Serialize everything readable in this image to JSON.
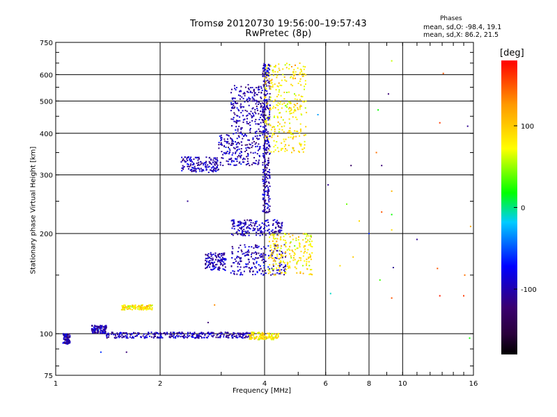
{
  "title": {
    "line1": "Tromsø 20120730 19:56:00–19:57:43",
    "line2": "RwPretec (8p)"
  },
  "stats": {
    "heading": "Phases",
    "o_mode": "mean, sd,O: -98.4, 19.1",
    "x_mode": "mean, sd,X: 86.2, 21.5"
  },
  "chart_data": {
    "type": "scatter",
    "xlabel": "Frequency [MHz]",
    "ylabel": "Stationary phase Virtual Height [km]",
    "x_scale": "log",
    "y_scale": "log",
    "xlim": [
      1,
      16
    ],
    "ylim": [
      75,
      750
    ],
    "x_ticks": [
      1,
      2,
      4,
      6,
      8,
      10,
      16
    ],
    "y_ticks": [
      75,
      100,
      200,
      300,
      400,
      500,
      600,
      750
    ],
    "x_gridlines": [
      2,
      4,
      6,
      8,
      10
    ],
    "y_gridlines": [
      100,
      200,
      300,
      400,
      500,
      600
    ],
    "colorbar": {
      "label": "[deg]",
      "range": [
        -180,
        180
      ],
      "ticks": [
        100,
        0,
        -100
      ],
      "colormap": [
        "#000000",
        "#3a0070",
        "#0000ff",
        "#00ffff",
        "#00ff00",
        "#ffff00",
        "#ff9900",
        "#ff0000"
      ]
    },
    "series": [
      {
        "name": "O",
        "mean_deg": -98.4,
        "sd_deg": 19.1,
        "color": "#2a10e8",
        "clusters": [
          {
            "f": [
              1.05,
              1.1
            ],
            "h": [
              93,
              100
            ]
          },
          {
            "f": [
              1.27,
              1.4
            ],
            "h": [
              100,
              106
            ]
          },
          {
            "f": [
              1.4,
              3.7
            ],
            "h": [
              97,
              101
            ]
          },
          {
            "f": [
              2.3,
              2.95
            ],
            "h": [
              305,
              340
            ]
          },
          {
            "f": [
              2.95,
              3.9
            ],
            "h": [
              320,
              400
            ]
          },
          {
            "f": [
              3.2,
              3.95
            ],
            "h": [
              400,
              560
            ]
          },
          {
            "f": [
              3.95,
              4.15
            ],
            "h": [
              230,
              650
            ]
          },
          {
            "f": [
              3.2,
              4.5
            ],
            "h": [
              197,
              220
            ]
          },
          {
            "f": [
              3.2,
              4.6
            ],
            "h": [
              150,
              185
            ]
          },
          {
            "f": [
              2.7,
              3.1
            ],
            "h": [
              155,
              175
            ]
          }
        ]
      },
      {
        "name": "X",
        "mean_deg": 86.2,
        "sd_deg": 21.5,
        "color": "#e8e800",
        "clusters": [
          {
            "f": [
              3.6,
              4.4
            ],
            "h": [
              96,
              101
            ]
          },
          {
            "f": [
              4.0,
              5.3
            ],
            "h": [
              350,
              650
            ]
          },
          {
            "f": [
              4.1,
              5.5
            ],
            "h": [
              150,
              200
            ]
          },
          {
            "f": [
              1.55,
              1.9
            ],
            "h": [
              118,
              122
            ]
          }
        ]
      }
    ],
    "isolated_points": [
      {
        "f": 13.1,
        "h": 605,
        "phase": 150
      },
      {
        "f": 9.3,
        "h": 660,
        "phase": 60
      },
      {
        "f": 9.1,
        "h": 525,
        "phase": -120
      },
      {
        "f": 8.5,
        "h": 470,
        "phase": 20
      },
      {
        "f": 5.7,
        "h": 455,
        "phase": -30
      },
      {
        "f": 12.8,
        "h": 430,
        "phase": 160
      },
      {
        "f": 15.4,
        "h": 420,
        "phase": -110
      },
      {
        "f": 8.4,
        "h": 350,
        "phase": 140
      },
      {
        "f": 8.7,
        "h": 320,
        "phase": -120
      },
      {
        "f": 7.1,
        "h": 320,
        "phase": -130
      },
      {
        "f": 6.1,
        "h": 280,
        "phase": -110
      },
      {
        "f": 9.3,
        "h": 268,
        "phase": 110
      },
      {
        "f": 6.9,
        "h": 245,
        "phase": 40
      },
      {
        "f": 8.7,
        "h": 232,
        "phase": 150
      },
      {
        "f": 9.3,
        "h": 228,
        "phase": 20
      },
      {
        "f": 7.5,
        "h": 218,
        "phase": 90
      },
      {
        "f": 15.7,
        "h": 210,
        "phase": 120
      },
      {
        "f": 9.3,
        "h": 205,
        "phase": 90
      },
      {
        "f": 8.0,
        "h": 200,
        "phase": -60
      },
      {
        "f": 11.0,
        "h": 192,
        "phase": -110
      },
      {
        "f": 7.2,
        "h": 170,
        "phase": 100
      },
      {
        "f": 6.6,
        "h": 160,
        "phase": 90
      },
      {
        "f": 12.6,
        "h": 157,
        "phase": 150
      },
      {
        "f": 9.4,
        "h": 158,
        "phase": -110
      },
      {
        "f": 15.1,
        "h": 150,
        "phase": 140
      },
      {
        "f": 8.6,
        "h": 145,
        "phase": 30
      },
      {
        "f": 12.8,
        "h": 130,
        "phase": 170
      },
      {
        "f": 9.3,
        "h": 128,
        "phase": 150
      },
      {
        "f": 6.2,
        "h": 132,
        "phase": -10
      },
      {
        "f": 15.0,
        "h": 130,
        "phase": 160
      },
      {
        "f": 2.4,
        "h": 250,
        "phase": -110
      },
      {
        "f": 2.87,
        "h": 122,
        "phase": 130
      },
      {
        "f": 2.75,
        "h": 108,
        "phase": -120
      },
      {
        "f": 1.35,
        "h": 88,
        "phase": -60
      },
      {
        "f": 1.6,
        "h": 88,
        "phase": -120
      },
      {
        "f": 15.6,
        "h": 97,
        "phase": 20
      }
    ]
  }
}
